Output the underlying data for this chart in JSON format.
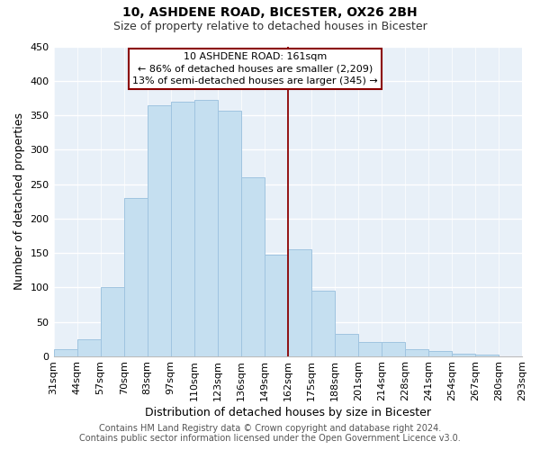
{
  "title": "10, ASHDENE ROAD, BICESTER, OX26 2BH",
  "subtitle": "Size of property relative to detached houses in Bicester",
  "xlabel": "Distribution of detached houses by size in Bicester",
  "ylabel": "Number of detached properties",
  "bar_labels": [
    "31sqm",
    "44sqm",
    "57sqm",
    "70sqm",
    "83sqm",
    "97sqm",
    "110sqm",
    "123sqm",
    "136sqm",
    "149sqm",
    "162sqm",
    "175sqm",
    "188sqm",
    "201sqm",
    "214sqm",
    "228sqm",
    "241sqm",
    "254sqm",
    "267sqm",
    "280sqm",
    "293sqm"
  ],
  "bar_heights": [
    10,
    25,
    100,
    230,
    365,
    370,
    372,
    357,
    260,
    148,
    155,
    95,
    33,
    21,
    21,
    10,
    8,
    3,
    2,
    0
  ],
  "bar_color": "#c5dff0",
  "bar_edge_color": "#a0c4e0",
  "vline_x_label": "162sqm",
  "vline_color": "#8b0000",
  "ylim": [
    0,
    450
  ],
  "yticks": [
    0,
    50,
    100,
    150,
    200,
    250,
    300,
    350,
    400,
    450
  ],
  "annotation_title": "10 ASHDENE ROAD: 161sqm",
  "annotation_line1": "← 86% of detached houses are smaller (2,209)",
  "annotation_line2": "13% of semi-detached houses are larger (345) →",
  "footer_line1": "Contains HM Land Registry data © Crown copyright and database right 2024.",
  "footer_line2": "Contains public sector information licensed under the Open Government Licence v3.0.",
  "bg_color": "#e8f0f8",
  "grid_color": "#ffffff",
  "title_fontsize": 10,
  "subtitle_fontsize": 9,
  "xlabel_fontsize": 9,
  "ylabel_fontsize": 9,
  "tick_fontsize": 8,
  "annotation_fontsize": 8,
  "footer_fontsize": 7
}
